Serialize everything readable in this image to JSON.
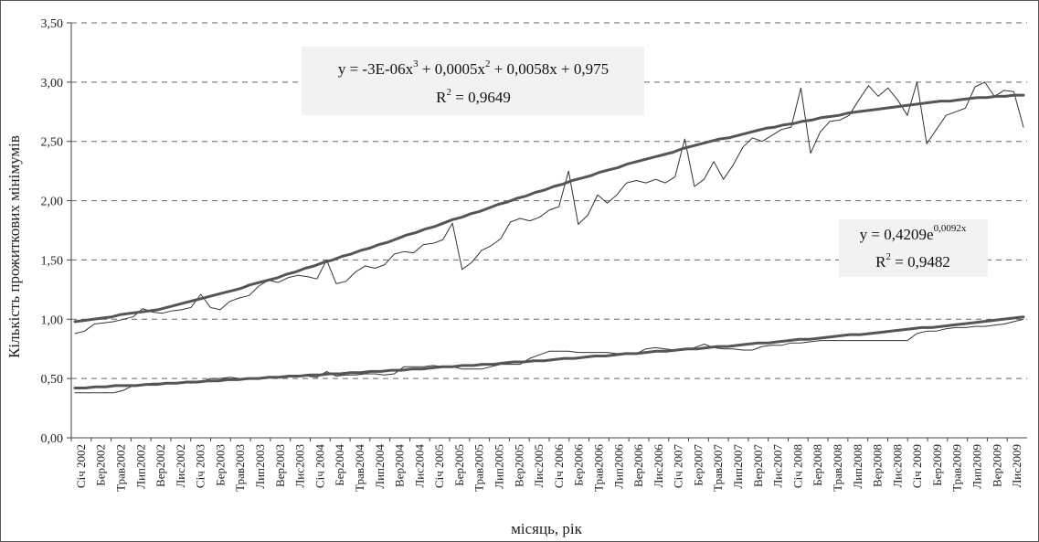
{
  "chart_data": {
    "type": "line",
    "ylabel": "Кількість прожиткових мінімумів",
    "xlabel": "місяць, рік",
    "ylim": [
      0,
      3.5
    ],
    "y_ticks": [
      "0,00",
      "0,50",
      "1,00",
      "1,50",
      "2,00",
      "2,50",
      "3,00",
      "3,50"
    ],
    "grid": "horizontal dashed",
    "x_tick_labels": [
      "Січ 2002",
      "Бер2002",
      "Трав2002",
      "Лип2002",
      "Вер2002",
      "Лис2002",
      "Січ 2003",
      "Бер2003",
      "Трав2003",
      "Лип2003",
      "Вер2003",
      "Лис2003",
      "Січ 2004",
      "Бер2004",
      "Трав2004",
      "Лип2004",
      "Вер2004",
      "Лис2004",
      "Січ 2005",
      "Бер2005",
      "Трав2005",
      "Лип2005",
      "Вер2005",
      "Лис2005",
      "Січ 2006",
      "Бер2006",
      "Трав2006",
      "Лип2006",
      "Вер2006",
      "Лис2006",
      "Січ 2007",
      "Бер2007",
      "Трав2007",
      "Лип2007",
      "Вер2007",
      "Лис2007",
      "Січ 2008",
      "Бер2008",
      "Трав2008",
      "Лип2008",
      "Вер2008",
      "Лис2008",
      "Січ 2009",
      "Бер2009",
      "Трав2009",
      "Лип2009",
      "Вер2009",
      "Лис2009"
    ],
    "series": [
      {
        "values": [
          0.88,
          0.9,
          0.96,
          0.97,
          0.98,
          1.0,
          1.02,
          1.09,
          1.06,
          1.05,
          1.07,
          1.08,
          1.1,
          1.21,
          1.1,
          1.08,
          1.15,
          1.18,
          1.2,
          1.28,
          1.33,
          1.31,
          1.35,
          1.37,
          1.36,
          1.34,
          1.5,
          1.3,
          1.32,
          1.4,
          1.45,
          1.43,
          1.46,
          1.55,
          1.57,
          1.56,
          1.63,
          1.64,
          1.67,
          1.81,
          1.42,
          1.48,
          1.58,
          1.62,
          1.68,
          1.82,
          1.85,
          1.83,
          1.86,
          1.92,
          1.95,
          2.25,
          1.8,
          1.88,
          2.05,
          1.98,
          2.05,
          2.15,
          2.17,
          2.15,
          2.18,
          2.15,
          2.2,
          2.52,
          2.12,
          2.18,
          2.33,
          2.18,
          2.3,
          2.45,
          2.53,
          2.5,
          2.55,
          2.6,
          2.62,
          2.95,
          2.4,
          2.58,
          2.67,
          2.68,
          2.72,
          2.85,
          2.97,
          2.88,
          2.95,
          2.85,
          2.72,
          3.0,
          2.48,
          2.6,
          2.72,
          2.75,
          2.78,
          2.96,
          3.0,
          2.88,
          2.93,
          2.92,
          2.62
        ]
      },
      {
        "values": [
          0.38,
          0.38,
          0.38,
          0.38,
          0.38,
          0.4,
          0.44,
          0.45,
          0.46,
          0.46,
          0.46,
          0.47,
          0.46,
          0.47,
          0.5,
          0.5,
          0.51,
          0.5,
          0.5,
          0.5,
          0.51,
          0.51,
          0.51,
          0.52,
          0.52,
          0.51,
          0.56,
          0.52,
          0.53,
          0.53,
          0.54,
          0.54,
          0.53,
          0.54,
          0.6,
          0.6,
          0.6,
          0.61,
          0.6,
          0.6,
          0.58,
          0.58,
          0.58,
          0.6,
          0.62,
          0.62,
          0.62,
          0.67,
          0.7,
          0.73,
          0.73,
          0.73,
          0.72,
          0.72,
          0.72,
          0.72,
          0.71,
          0.71,
          0.71,
          0.75,
          0.76,
          0.75,
          0.74,
          0.74,
          0.76,
          0.79,
          0.76,
          0.75,
          0.75,
          0.74,
          0.74,
          0.77,
          0.78,
          0.78,
          0.8,
          0.8,
          0.81,
          0.82,
          0.82,
          0.82,
          0.82,
          0.82,
          0.82,
          0.82,
          0.82,
          0.82,
          0.82,
          0.88,
          0.9,
          0.9,
          0.92,
          0.93,
          0.93,
          0.94,
          0.94,
          0.95,
          0.96,
          0.98,
          1.0
        ]
      },
      {
        "values": [
          0.98,
          0.99,
          1.0,
          1.01,
          1.02,
          1.04,
          1.05,
          1.06,
          1.07,
          1.08,
          1.1,
          1.12,
          1.14,
          1.16,
          1.18,
          1.2,
          1.22,
          1.24,
          1.26,
          1.29,
          1.31,
          1.33,
          1.35,
          1.38,
          1.4,
          1.43,
          1.45,
          1.48,
          1.5,
          1.53,
          1.55,
          1.58,
          1.6,
          1.63,
          1.65,
          1.68,
          1.71,
          1.73,
          1.76,
          1.78,
          1.81,
          1.84,
          1.86,
          1.89,
          1.91,
          1.94,
          1.97,
          1.99,
          2.02,
          2.04,
          2.07,
          2.09,
          2.12,
          2.14,
          2.17,
          2.19,
          2.21,
          2.24,
          2.26,
          2.28,
          2.31,
          2.33,
          2.35,
          2.37,
          2.39,
          2.41,
          2.44,
          2.46,
          2.48,
          2.5,
          2.52,
          2.53,
          2.55,
          2.57,
          2.59,
          2.61,
          2.62,
          2.64,
          2.65,
          2.67,
          2.68,
          2.7,
          2.71,
          2.72,
          2.74,
          2.75,
          2.76,
          2.77,
          2.78,
          2.79,
          2.8,
          2.81,
          2.82,
          2.83,
          2.84,
          2.84,
          2.85,
          2.86,
          2.87,
          2.87,
          2.88,
          2.88,
          2.89,
          2.89
        ]
      },
      {
        "values": [
          0.42,
          0.42,
          0.43,
          0.43,
          0.44,
          0.44,
          0.44,
          0.45,
          0.45,
          0.46,
          0.46,
          0.47,
          0.47,
          0.48,
          0.48,
          0.49,
          0.49,
          0.5,
          0.5,
          0.51,
          0.51,
          0.52,
          0.52,
          0.53,
          0.53,
          0.54,
          0.54,
          0.55,
          0.55,
          0.56,
          0.56,
          0.57,
          0.57,
          0.58,
          0.58,
          0.59,
          0.6,
          0.6,
          0.61,
          0.61,
          0.62,
          0.62,
          0.63,
          0.64,
          0.64,
          0.65,
          0.65,
          0.66,
          0.67,
          0.67,
          0.68,
          0.69,
          0.69,
          0.7,
          0.71,
          0.71,
          0.72,
          0.73,
          0.73,
          0.74,
          0.75,
          0.75,
          0.76,
          0.77,
          0.77,
          0.78,
          0.79,
          0.8,
          0.8,
          0.81,
          0.82,
          0.83,
          0.83,
          0.84,
          0.85,
          0.86,
          0.87,
          0.87,
          0.88,
          0.89,
          0.9,
          0.91,
          0.92,
          0.93,
          0.93,
          0.94,
          0.95,
          0.96,
          0.97,
          0.98,
          0.99,
          1.0,
          1.01,
          1.02
        ]
      }
    ],
    "annotations": {
      "poly": {
        "line1_parts": [
          "y = -3E-06x",
          "3",
          " + 0,0005x",
          "2",
          " + 0,0058x + 0,975"
        ],
        "line2_parts": [
          "R",
          "2",
          " = 0,9649"
        ]
      },
      "exp": {
        "line1_parts": [
          "y = 0,4209e",
          "0,0092x"
        ],
        "line2_parts": [
          "R",
          "2",
          " = 0,9482"
        ]
      }
    }
  }
}
